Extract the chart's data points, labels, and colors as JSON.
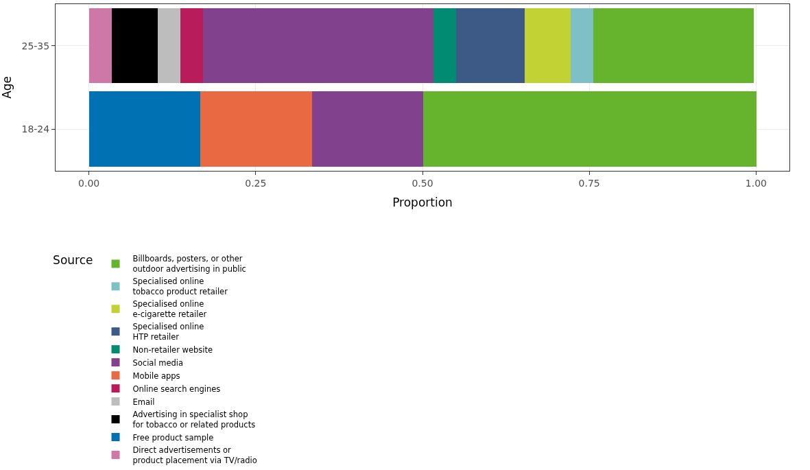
{
  "chart_data": {
    "type": "bar",
    "orientation": "horizontal",
    "stacked": true,
    "xlabel": "Proportion",
    "ylabel": "Age",
    "legend_title": "Source",
    "categories": [
      "25-35",
      "18-24"
    ],
    "xlim": [
      -0.05,
      1.05
    ],
    "xticks": [
      {
        "value": 0,
        "label": "0.00"
      },
      {
        "value": 0.25,
        "label": "0.25"
      },
      {
        "value": 0.5,
        "label": "0.50"
      },
      {
        "value": 0.75,
        "label": "0.75"
      },
      {
        "value": 1,
        "label": "1.00"
      }
    ],
    "grid": true,
    "legend": "bottom",
    "series": [
      {
        "name": "Direct advertisements or product placement via TV/radio",
        "color": "#cd79a8",
        "values": [
          0.034,
          null
        ]
      },
      {
        "name": "Free product sample",
        "color": "#0071b2",
        "values": [
          null,
          0.167
        ]
      },
      {
        "name": "Advertising in specialist shop for tobacco or related products",
        "color": "#000000",
        "values": [
          0.069,
          null
        ]
      },
      {
        "name": "Email",
        "color": "#bdbdbd",
        "values": [
          0.034,
          null
        ]
      },
      {
        "name": "Online search engines",
        "color": "#b91c5b",
        "values": [
          0.034,
          null
        ]
      },
      {
        "name": "Mobile apps",
        "color": "#e86942",
        "values": [
          null,
          0.167
        ]
      },
      {
        "name": "Social media",
        "color": "#82418c",
        "values": [
          0.345,
          0.167
        ]
      },
      {
        "name": "Non-retailer website",
        "color": "#008b72",
        "values": [
          0.034,
          null
        ]
      },
      {
        "name": "Specialised online HTP retailer",
        "color": "#3d5a86",
        "values": [
          0.103,
          null
        ]
      },
      {
        "name": "Specialised online e-cigarette retailer",
        "color": "#c2d134",
        "values": [
          0.069,
          null
        ]
      },
      {
        "name": "Specialised online tobacco product retailer",
        "color": "#7fbfc6",
        "values": [
          0.034,
          null
        ]
      },
      {
        "name": "Billboards, posters, or other outdoor advertising in public",
        "color": "#66b32e",
        "values": [
          0.241,
          0.5
        ]
      }
    ]
  }
}
